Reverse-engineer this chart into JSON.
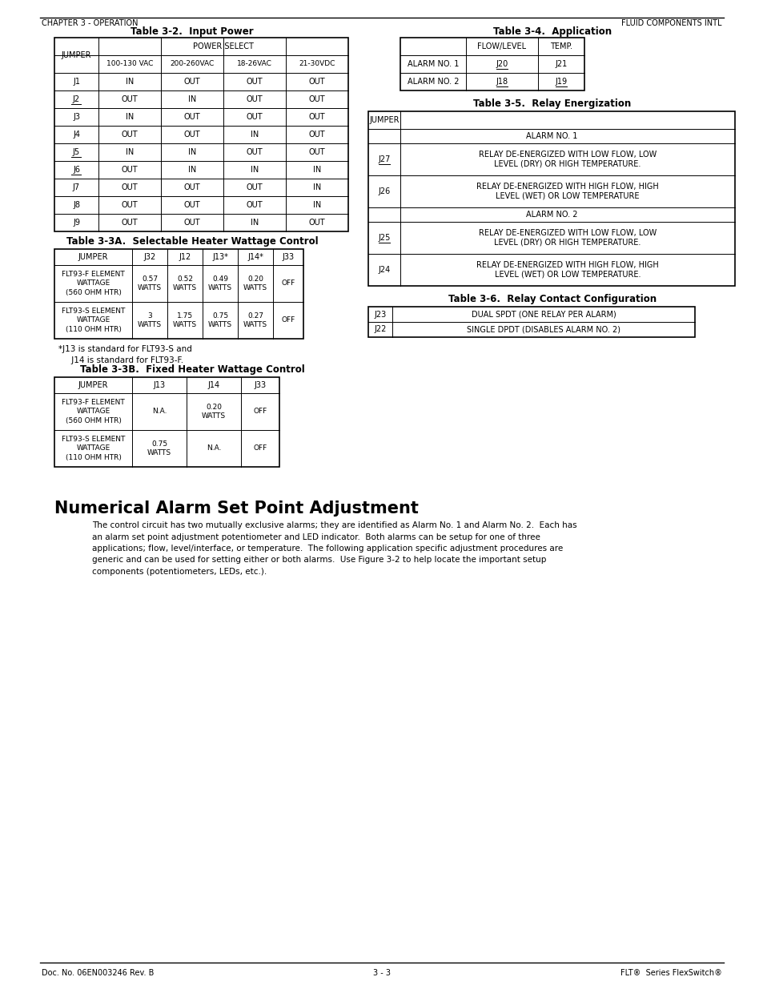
{
  "page_bg": "#ffffff",
  "header_left": "CHAPTER 3 - OPERATION",
  "header_right": "FLUID COMPONENTS INTL",
  "footer_left": "Doc. No. 06EN003246 Rev. B",
  "footer_center": "3 - 3",
  "footer_right": "FLT®  Series FlexSwitch®",
  "table32_title": "Table 3-2.  Input Power",
  "table32_jumper_underlined": [
    "J2",
    "J5",
    "J6"
  ],
  "table32_sub_headers": [
    "100-130 VAC",
    "200-260VAC",
    "18-26VAC",
    "21-30VDC"
  ],
  "table32_rows": [
    [
      "J1",
      "IN",
      "OUT",
      "OUT",
      "OUT"
    ],
    [
      "J2",
      "OUT",
      "IN",
      "OUT",
      "OUT"
    ],
    [
      "J3",
      "IN",
      "OUT",
      "OUT",
      "OUT"
    ],
    [
      "J4",
      "OUT",
      "OUT",
      "IN",
      "OUT"
    ],
    [
      "J5",
      "IN",
      "IN",
      "OUT",
      "OUT"
    ],
    [
      "J6",
      "OUT",
      "IN",
      "IN",
      "IN"
    ],
    [
      "J7",
      "OUT",
      "OUT",
      "OUT",
      "IN"
    ],
    [
      "J8",
      "OUT",
      "OUT",
      "OUT",
      "IN"
    ],
    [
      "J9",
      "OUT",
      "OUT",
      "IN",
      "OUT"
    ]
  ],
  "table33a_title": "Table 3-3A.  Selectable Heater Wattage Control",
  "table33a_headers": [
    "JUMPER",
    "J32",
    "J12",
    "J13*",
    "J14*",
    "J33"
  ],
  "table33a_rows": [
    [
      "FLT93-F ELEMENT\nWATTAGE\n(560 OHM HTR)",
      "0.57\nWATTS",
      "0.52\nWATTS",
      "0.49\nWATTS",
      "0.20\nWATTS",
      "OFF"
    ],
    [
      "FLT93-S ELEMENT\nWATTAGE\n(110 OHM HTR)",
      "3\nWATTS",
      "1.75\nWATTS",
      "0.75\nWATTS",
      "0.27\nWATTS",
      "OFF"
    ]
  ],
  "table33a_note1": "*J13 is standard for FLT93-S and",
  "table33a_note2": "     J14 is standard for FLT93-F.",
  "table33b_title": "Table 3-3B.  Fixed Heater Wattage Control",
  "table33b_headers": [
    "JUMPER",
    "J13",
    "J14",
    "J33"
  ],
  "table33b_rows": [
    [
      "FLT93-F ELEMENT\nWATTAGE\n(560 OHM HTR)",
      "N.A.",
      "0.20\nWATTS",
      "OFF"
    ],
    [
      "FLT93-S ELEMENT\nWATTAGE\n(110 OHM HTR)",
      "0.75\nWATTS",
      "N.A.",
      "OFF"
    ]
  ],
  "table34_title": "Table 3-4.  Application",
  "table34_headers": [
    "",
    "FLOW/LEVEL",
    "TEMP."
  ],
  "table34_rows": [
    [
      "ALARM NO. 1",
      "J20",
      "J21"
    ],
    [
      "ALARM NO. 2",
      "J18",
      "J19"
    ]
  ],
  "table34_underlined": [
    "J20",
    "J18",
    "J19"
  ],
  "table35_title": "Table 3-5.  Relay Energization",
  "table35_alarm1_rows": [
    [
      "J27",
      "RELAY DE-ENERGIZED WITH LOW FLOW, LOW\nLEVEL (DRY) OR HIGH TEMPERATURE."
    ],
    [
      "J26",
      "RELAY DE-ENERGIZED WITH HIGH FLOW, HIGH\nLEVEL (WET) OR LOW TEMPERATURE"
    ]
  ],
  "table35_alarm2_rows": [
    [
      "J25",
      "RELAY DE-ENERGIZED WITH LOW FLOW, LOW\nLEVEL (DRY) OR HIGH TEMPERATURE."
    ],
    [
      "J24",
      "RELAY DE-ENERGIZED WITH HIGH FLOW, HIGH\nLEVEL (WET) OR LOW TEMPERATURE."
    ]
  ],
  "table36_title": "Table 3-6.  Relay Contact Configuration",
  "table36_rows": [
    [
      "J23",
      "DUAL SPDT (ONE RELAY PER ALARM)"
    ],
    [
      "J22",
      "SINGLE DPDT (DISABLES ALARM NO. 2)"
    ]
  ],
  "section_title": "Numerical Alarm Set Point Adjustment",
  "section_body_lines": [
    "The control circuit has two mutually exclusive alarms; they are identified as Alarm No. 1 and Alarm No. 2.  Each has",
    "an alarm set point adjustment potentiometer and LED indicator.  Both alarms can be setup for one of three",
    "applications; flow, level/interface, or temperature.  The following application specific adjustment procedures are",
    "generic and can be used for setting either or both alarms.  Use Figure 3-2 to help locate the important setup",
    "components (potentiometers, LEDs, etc.)."
  ]
}
